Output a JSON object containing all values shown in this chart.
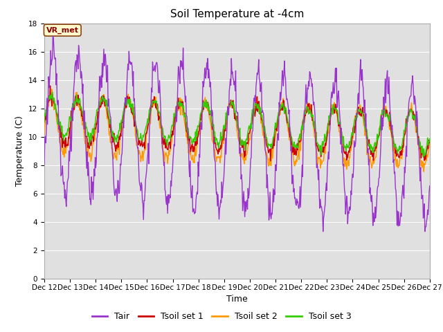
{
  "title": "Soil Temperature at -4cm",
  "xlabel": "Time",
  "ylabel": "Temperature (C)",
  "ylim": [
    0,
    18
  ],
  "yticks": [
    0,
    2,
    4,
    6,
    8,
    10,
    12,
    14,
    16,
    18
  ],
  "legend_label": "VR_met",
  "series_labels": [
    "Tair",
    "Tsoil set 1",
    "Tsoil set 2",
    "Tsoil set 3"
  ],
  "series_colors": [
    "#9933CC",
    "#CC0000",
    "#FF9900",
    "#33CC00"
  ],
  "background_color": "#ffffff",
  "plot_bg_color": "#e0e0e0",
  "grid_color": "#ffffff",
  "xtick_labels": [
    "Dec 12",
    "Dec 13",
    "Dec 14",
    "Dec 15",
    "Dec 16",
    "Dec 17",
    "Dec 18",
    "Dec 19",
    "Dec 20",
    "Dec 21",
    "Dec 22",
    "Dec 23",
    "Dec 24",
    "Dec 25",
    "Dec 26",
    "Dec 27"
  ],
  "n_points": 720,
  "days": 15,
  "title_fontsize": 11,
  "axis_label_fontsize": 9,
  "tick_fontsize": 7.5,
  "vr_met_fontsize": 8
}
